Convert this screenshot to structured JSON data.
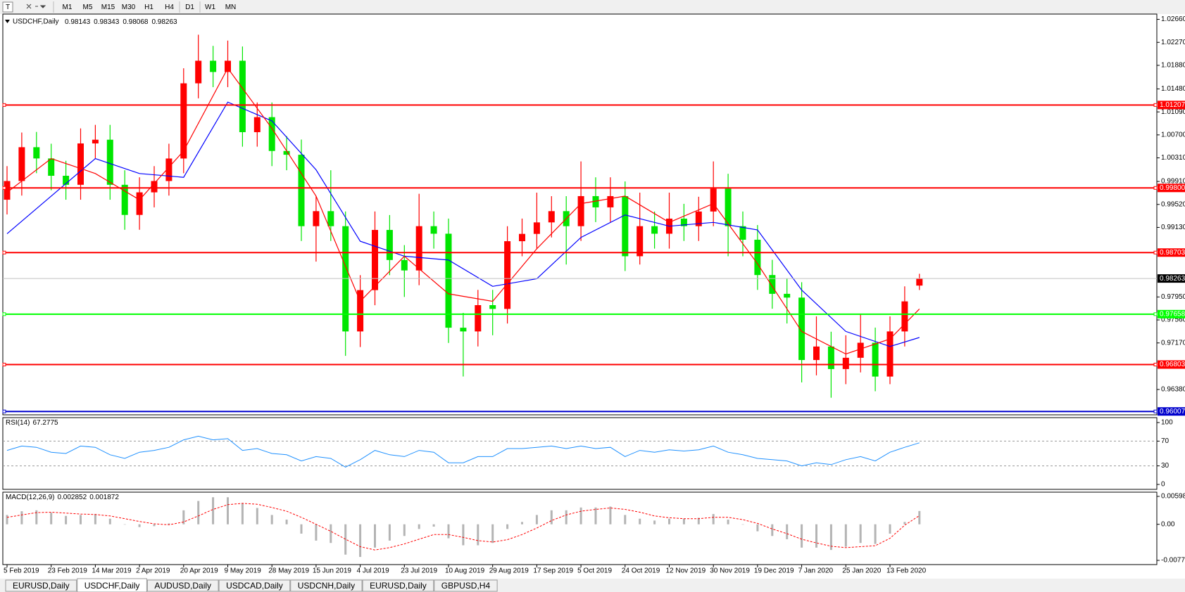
{
  "toolbar": {
    "timeframes": [
      "M1",
      "M5",
      "M15",
      "M30",
      "H1",
      "H4",
      "D1",
      "W1",
      "MN"
    ]
  },
  "tabs": {
    "items": [
      "EURUSD,Daily",
      "USDCHF,Daily",
      "AUDUSD,Daily",
      "USDCAD,Daily",
      "USDCNH,Daily",
      "EURUSD,Daily",
      "GBPUSD,H4"
    ],
    "active": 1
  },
  "chart_data": [
    {
      "type": "candlestick",
      "title": "USDCHF,Daily",
      "categories": [
        "5 Feb 2019",
        null,
        null,
        "23 Feb 2019",
        null,
        null,
        "14 Mar 2019",
        null,
        null,
        "2 Apr 2019",
        null,
        null,
        "20 Apr 2019",
        null,
        null,
        "9 May 2019",
        null,
        null,
        "28 May 2019",
        null,
        null,
        "15 Jun 2019",
        null,
        null,
        "4 Jul 2019",
        null,
        null,
        "23 Jul 2019",
        null,
        null,
        "10 Aug 2019",
        null,
        null,
        "29 Aug 2019",
        null,
        null,
        "17 Sep 2019",
        null,
        null,
        "5 Oct 2019",
        null,
        null,
        "24 Oct 2019",
        null,
        null,
        "12 Nov 2019",
        null,
        null,
        "30 Nov 2019",
        null,
        null,
        "19 Dec 2019",
        null,
        null,
        "7 Jan 2020",
        null,
        null,
        "25 Jan 2020",
        null,
        null,
        "13 Feb 2020",
        null,
        null
      ],
      "open": [
        0.996,
        0.99917,
        1.00491,
        1.003,
        1.00006,
        0.99853,
        1.00555,
        1.00618,
        0.99853,
        0.99342,
        0.99725,
        0.99917,
        1.00299,
        1.01575,
        1.01958,
        1.01767,
        1.01958,
        1.00746,
        1.01001,
        1.00427,
        1.00363,
        0.99151,
        0.99406,
        0.99151,
        0.97365,
        0.98066,
        0.99087,
        0.98577,
        0.984,
        0.99151,
        0.99023,
        0.97428,
        0.97365,
        0.97811,
        0.97747,
        0.98896,
        0.9902,
        0.99215,
        0.99406,
        0.99151,
        0.99661,
        0.9947,
        0.99661,
        0.98641,
        0.99151,
        0.99023,
        0.99279,
        0.99151,
        0.994,
        0.99789,
        0.99151,
        0.98921,
        0.98322,
        0.98003,
        0.97939,
        0.9688,
        0.97109,
        0.96727,
        0.96918,
        0.97173,
        0.96599,
        0.97365,
        0.98143
      ],
      "high": [
        1.0017,
        1.0074,
        1.0075,
        1.0055,
        1.0026,
        1.0081,
        1.0087,
        1.0087,
        1.001,
        0.9998,
        1.0017,
        1.0055,
        1.0183,
        1.024,
        1.0221,
        1.023,
        1.022,
        1.0125,
        1.0125,
        1.0068,
        1.0062,
        0.9966,
        1.001,
        0.994,
        0.9832,
        0.994,
        0.9934,
        0.9883,
        0.997,
        0.994,
        0.9928,
        0.9768,
        0.9807,
        0.9807,
        0.9915,
        0.9928,
        0.9972,
        0.9966,
        0.9966,
        1.0025,
        0.9998,
        0.9998,
        0.9991,
        0.9972,
        0.994,
        0.9972,
        0.9953,
        0.9965,
        1.0025,
        1.0004,
        0.994,
        0.9917,
        0.9858,
        0.9826,
        0.982,
        0.9762,
        0.9736,
        0.973,
        0.9765,
        0.9743,
        0.9762,
        0.9813,
        0.98343
      ],
      "low": [
        0.9935,
        0.9967,
        1.0005,
        0.9976,
        0.996,
        0.996,
        1.003,
        0.996,
        0.9909,
        0.9909,
        0.9947,
        0.9967,
        1.0005,
        1.0132,
        1.0151,
        1.0151,
        1.005,
        1.005,
        1.0017,
        1.001,
        0.989,
        0.9855,
        0.989,
        0.9695,
        0.971,
        0.9781,
        0.9832,
        0.9795,
        0.9815,
        0.9877,
        0.9717,
        0.966,
        0.9711,
        0.973,
        0.975,
        0.9864,
        0.9877,
        0.9896,
        0.985,
        0.989,
        0.9922,
        0.9922,
        0.9839,
        0.985,
        0.9877,
        0.9877,
        0.989,
        0.989,
        0.9915,
        0.9864,
        0.9864,
        0.9807,
        0.9775,
        0.975,
        0.965,
        0.9662,
        0.9624,
        0.9647,
        0.9667,
        0.9635,
        0.9647,
        0.9711,
        0.98068
      ],
      "close": [
        0.99917,
        1.00491,
        1.003,
        1.00006,
        0.99853,
        1.00555,
        1.00618,
        0.99853,
        0.99342,
        0.99725,
        0.99917,
        1.00299,
        1.01575,
        1.01958,
        1.01767,
        1.01958,
        1.00746,
        1.01001,
        1.00427,
        1.00363,
        0.99151,
        0.99406,
        0.99151,
        0.97365,
        0.98066,
        0.99087,
        0.98577,
        0.984,
        0.99151,
        0.99023,
        0.97428,
        0.97365,
        0.97811,
        0.97747,
        0.98896,
        0.9902,
        0.99215,
        0.99406,
        0.99151,
        0.99661,
        0.9947,
        0.99661,
        0.98641,
        0.99151,
        0.99023,
        0.99279,
        0.99151,
        0.994,
        0.99789,
        0.99151,
        0.98921,
        0.98322,
        0.98003,
        0.97939,
        0.9688,
        0.97109,
        0.96727,
        0.96918,
        0.97173,
        0.96599,
        0.97365,
        0.97875,
        0.98263
      ],
      "up_color": "#ff0000",
      "down_color": "#00e600",
      "current_price_color": "#c0c0c0",
      "ylim": [
        0.9595,
        1.0275
      ],
      "yticks": [
        {
          "value": 1.0266,
          "label": "1.02660"
        },
        {
          "value": 1.0227,
          "label": "1.02270"
        },
        {
          "value": 1.0188,
          "label": "1.01880"
        },
        {
          "value": 1.0148,
          "label": "1.01480"
        },
        {
          "value": 1.0109,
          "label": "1.01090"
        },
        {
          "value": 1.007,
          "label": "1.00700"
        },
        {
          "value": 1.0031,
          "label": "1.00310"
        },
        {
          "value": 0.9991,
          "label": "0.99910"
        },
        {
          "value": 0.9952,
          "label": "0.99520"
        },
        {
          "value": 0.9913,
          "label": "0.99130"
        },
        {
          "value": 0.9795,
          "label": "0.97950"
        },
        {
          "value": 0.9756,
          "label": "0.97560"
        },
        {
          "value": 0.9717,
          "label": "0.97170"
        },
        {
          "value": 0.9638,
          "label": "0.96380"
        }
      ],
      "moving_averages": [
        {
          "color": "#0000ff",
          "x": [
            0,
            3,
            6,
            9,
            12,
            15,
            18,
            21,
            24,
            27,
            30,
            33,
            36,
            39,
            42,
            45,
            48,
            51,
            54,
            57,
            60,
            62
          ],
          "values": [
            0.99023,
            0.99661,
            1.00299,
            1.00044,
            0.9998,
            1.01256,
            1.00937,
            1.00108,
            0.98896,
            0.98641,
            0.98577,
            0.9813,
            0.98258,
            0.9896,
            0.99342,
            0.99151,
            0.99215,
            0.99087,
            0.98066,
            0.97365,
            0.97109,
            0.97262
          ]
        },
        {
          "color": "#ff0000",
          "x": [
            0,
            3,
            6,
            9,
            12,
            15,
            18,
            21,
            24,
            27,
            30,
            33,
            36,
            39,
            42,
            45,
            48,
            51,
            54,
            57,
            60,
            62
          ],
          "values": [
            0.99725,
            1.00299,
            1.00044,
            0.99598,
            1.00427,
            1.01831,
            1.0081,
            0.99661,
            0.97875,
            0.98641,
            0.98003,
            0.97875,
            0.98768,
            0.99534,
            0.99661,
            0.99215,
            0.99534,
            0.98513,
            0.97365,
            0.96982,
            0.97237,
            0.97747
          ]
        }
      ],
      "levels": [
        {
          "value": 1.01207,
          "color": "#ff0000"
        },
        {
          "value": 0.998,
          "label": "0.99800",
          "color": "#ff0000"
        },
        {
          "value": 0.98703,
          "color": "#ff0000"
        },
        {
          "value": 0.97658,
          "color": "#00ff00"
        },
        {
          "value": 0.96803,
          "color": "#ff0000"
        },
        {
          "value": 0.96007,
          "color": "#0000cd"
        }
      ]
    },
    {
      "type": "line",
      "title": "RSI(14)",
      "color": "#1e90ff",
      "ylim": [
        0,
        100
      ],
      "yticks": [
        100,
        70,
        30,
        0
      ],
      "levels": [
        70,
        30
      ],
      "values": [
        55,
        62,
        60,
        52,
        50,
        62,
        60,
        48,
        42,
        52,
        55,
        60,
        72,
        78,
        72,
        74,
        55,
        58,
        50,
        48,
        38,
        45,
        42,
        28,
        40,
        55,
        48,
        45,
        55,
        52,
        35,
        35,
        45,
        45,
        58,
        58,
        60,
        62,
        58,
        62,
        58,
        60,
        45,
        55,
        52,
        56,
        54,
        56,
        62,
        52,
        48,
        42,
        40,
        38,
        30,
        35,
        32,
        40,
        45,
        38,
        52,
        60,
        67.2775
      ]
    },
    {
      "type": "macd",
      "title": "MACD(12,26,9)",
      "histogram_color": "#b4b4b4",
      "signal_color": "#ff0000",
      "ylim": [
        -0.007733,
        0.005986
      ],
      "yticks": [
        0.005986,
        {
          "value": 0,
          "label": "0.00"
        },
        -0.007733
      ],
      "histogram": [
        0.002,
        0.0028,
        0.003,
        0.0025,
        0.0018,
        0.002,
        0.0022,
        0.0012,
        0,
        -0.0006,
        -0.0004,
        0.0002,
        0.003,
        0.005,
        0.0058,
        0.0058,
        0.0045,
        0.0035,
        0.002,
        0.001,
        -0.002,
        -0.0035,
        -0.004,
        -0.0065,
        -0.007,
        -0.005,
        -0.0035,
        -0.0025,
        -0.001,
        -0.0005,
        -0.003,
        -0.0045,
        -0.0045,
        -0.004,
        -0.001,
        0.0005,
        0.002,
        0.003,
        0.003,
        0.0036,
        0.0036,
        0.0038,
        0.002,
        0.0012,
        0.0008,
        0.0012,
        0.0012,
        0.0014,
        0.0022,
        0.001,
        0,
        -0.0015,
        -0.0025,
        -0.0032,
        -0.005,
        -0.005,
        -0.0055,
        -0.0048,
        -0.004,
        -0.0042,
        -0.002,
        0.0005,
        0.002852
      ],
      "signal": [
        0.0015,
        0.002,
        0.0025,
        0.0026,
        0.0024,
        0.0022,
        0.0021,
        0.0018,
        0.0012,
        0.0006,
        0.0001,
        -0.0001,
        0.0005,
        0.0018,
        0.0032,
        0.0042,
        0.0045,
        0.0043,
        0.0036,
        0.0028,
        0.0015,
        0,
        -0.0015,
        -0.0032,
        -0.0048,
        -0.0055,
        -0.005,
        -0.0042,
        -0.0032,
        -0.0022,
        -0.0022,
        -0.0028,
        -0.0035,
        -0.0038,
        -0.0033,
        -0.0022,
        -0.0008,
        0.0008,
        0.002,
        0.0028,
        0.0032,
        0.0035,
        0.0032,
        0.0026,
        0.0018,
        0.0014,
        0.0012,
        0.0012,
        0.0015,
        0.0015,
        0.001,
        0.0002,
        -0.001,
        -0.002,
        -0.0032,
        -0.004,
        -0.0047,
        -0.005,
        -0.0048,
        -0.0046,
        -0.003,
        -0.0002,
        0.001872
      ]
    }
  ]
}
